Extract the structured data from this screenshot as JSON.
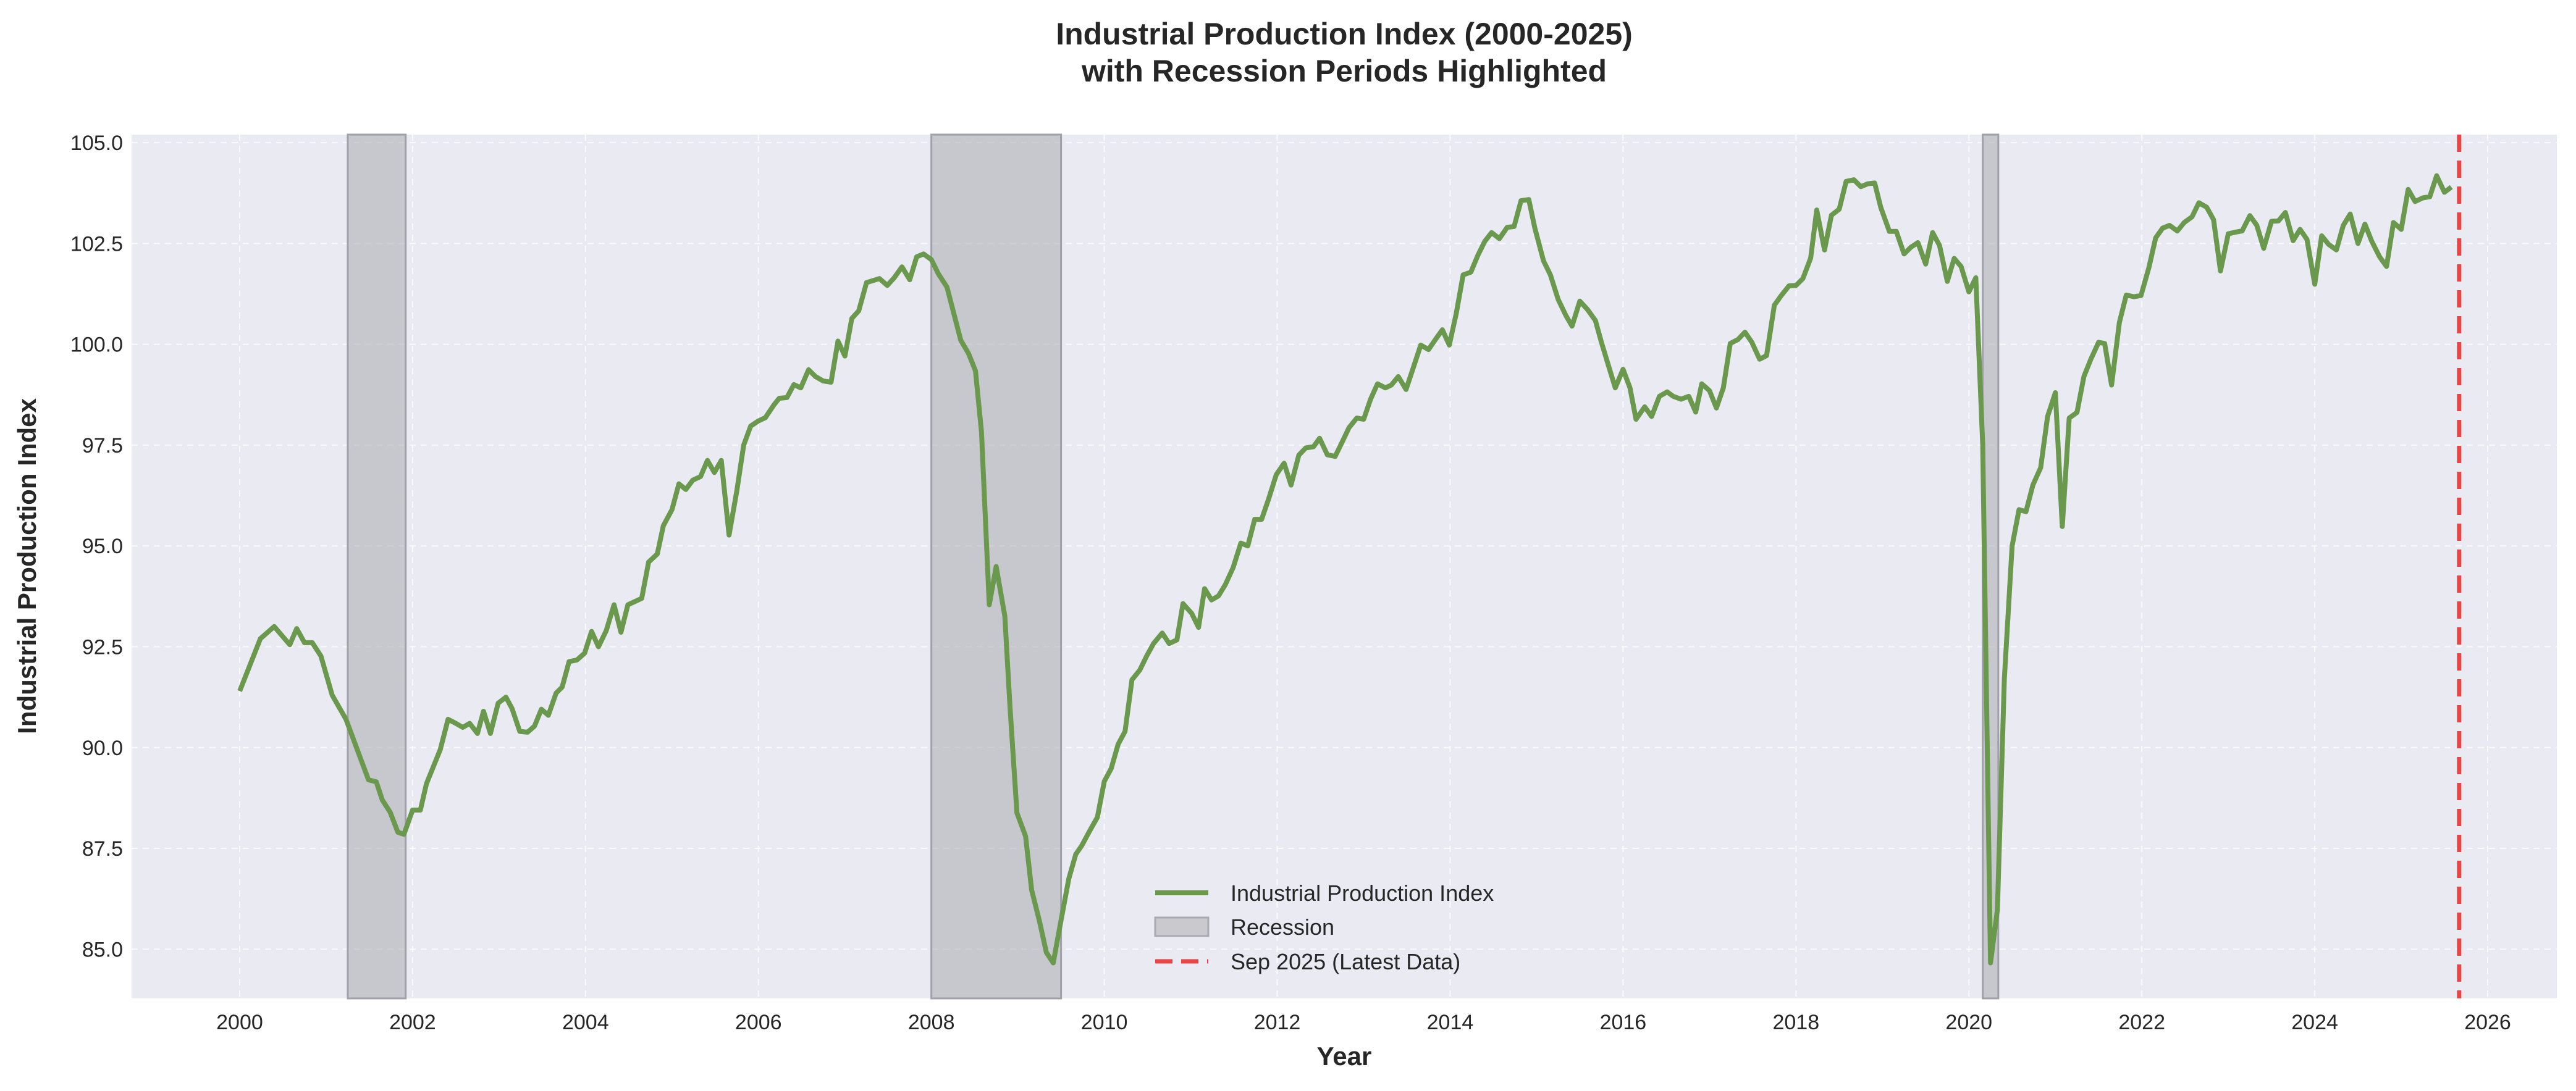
{
  "chart_data": {
    "type": "line",
    "title": "Industrial Production Index (2000-2025)",
    "subtitle": "with Recession Periods Highlighted",
    "xlabel": "Year",
    "ylabel": "Industrial Production Index",
    "xlim": [
      1998.75,
      2026.8
    ],
    "ylim": [
      83.78,
      105.2
    ],
    "xticks": [
      2000,
      2002,
      2004,
      2006,
      2008,
      2010,
      2012,
      2014,
      2016,
      2018,
      2020,
      2022,
      2024,
      2026
    ],
    "xtick_labels": [
      "2000",
      "2002",
      "2004",
      "2006",
      "2008",
      "2010",
      "2012",
      "2014",
      "2016",
      "2018",
      "2020",
      "2022",
      "2024",
      "2026"
    ],
    "yticks": [
      85,
      87.5,
      90,
      92.5,
      95,
      97.5,
      100,
      102.5,
      105
    ],
    "ytick_labels": [
      "85.0",
      "87.5",
      "90.0",
      "92.5",
      "95.0",
      "97.5",
      "100.0",
      "102.5",
      "105.0"
    ],
    "grid": true,
    "legend_position": "lower-center",
    "colors": {
      "line": "#6a994e",
      "recession": "#a9a9b0",
      "latest": "#e84545",
      "background": "#eaeaf2"
    },
    "series": [
      {
        "name": "Industrial Production Index",
        "x": [
          2000.0,
          2000.24,
          2000.4,
          2000.58,
          2000.66,
          2000.75,
          2000.84,
          2000.94,
          2001.07,
          2001.23,
          2001.49,
          2001.58,
          2001.65,
          2001.74,
          2001.83,
          2001.9,
          2002.0,
          2002.09,
          2002.16,
          2002.32,
          2002.41,
          2002.5,
          2002.58,
          2002.66,
          2002.75,
          2002.82,
          2002.9,
          2002.99,
          2003.08,
          2003.15,
          2003.24,
          2003.33,
          2003.41,
          2003.49,
          2003.57,
          2003.66,
          2003.73,
          2003.81,
          2003.9,
          2003.99,
          2004.07,
          2004.15,
          2004.24,
          2004.33,
          2004.41,
          2004.49,
          2004.65,
          2004.73,
          2004.83,
          2004.9,
          2005.0,
          2005.08,
          2005.16,
          2005.24,
          2005.33,
          2005.41,
          2005.49,
          2005.57,
          2005.66,
          2005.75,
          2005.83,
          2005.91,
          2006.0,
          2006.08,
          2006.18,
          2006.24,
          2006.33,
          2006.41,
          2006.49,
          2006.58,
          2006.66,
          2006.75,
          2006.84,
          2006.92,
          2007.0,
          2007.08,
          2007.16,
          2007.25,
          2007.4,
          2007.49,
          2007.57,
          2007.66,
          2007.75,
          2007.83,
          2007.91,
          2008.0,
          2008.08,
          2008.18,
          2008.34,
          2008.43,
          2008.51,
          2008.58,
          2008.67,
          2008.75,
          2008.85,
          2008.91,
          2008.99,
          2009.09,
          2009.16,
          2009.25,
          2009.33,
          2009.41,
          2009.49,
          2009.59,
          2009.67,
          2009.74,
          2009.83,
          2009.92,
          2010.0,
          2010.08,
          2010.16,
          2010.24,
          2010.32,
          2010.41,
          2010.49,
          2010.57,
          2010.67,
          2010.75,
          2010.84,
          2010.91,
          2011.01,
          2011.09,
          2011.16,
          2011.24,
          2011.32,
          2011.4,
          2011.49,
          2011.58,
          2011.66,
          2011.74,
          2011.82,
          2011.9,
          2011.99,
          2012.08,
          2012.16,
          2012.25,
          2012.33,
          2012.42,
          2012.49,
          2012.58,
          2012.67,
          2012.75,
          2012.83,
          2012.92,
          2013.0,
          2013.08,
          2013.16,
          2013.25,
          2013.32,
          2013.4,
          2013.49,
          2013.58,
          2013.66,
          2013.75,
          2013.83,
          2013.91,
          2013.99,
          2014.07,
          2014.15,
          2014.24,
          2014.32,
          2014.4,
          2014.48,
          2014.57,
          2014.66,
          2014.74,
          2014.82,
          2014.91,
          2014.98,
          2015.08,
          2015.16,
          2015.25,
          2015.34,
          2015.41,
          2015.5,
          2015.59,
          2015.68,
          2015.75,
          2015.84,
          2015.91,
          2016.0,
          2016.08,
          2016.15,
          2016.25,
          2016.33,
          2016.42,
          2016.51,
          2016.58,
          2016.67,
          2016.76,
          2016.84,
          2016.91,
          2017.0,
          2017.08,
          2017.16,
          2017.24,
          2017.33,
          2017.41,
          2017.49,
          2017.58,
          2017.66,
          2017.75,
          2017.83,
          2017.92,
          2018.0,
          2018.08,
          2018.17,
          2018.24,
          2018.33,
          2018.41,
          2018.5,
          2018.58,
          2018.67,
          2018.75,
          2018.83,
          2018.91,
          2018.98,
          2019.08,
          2019.16,
          2019.25,
          2019.33,
          2019.41,
          2019.5,
          2019.58,
          2019.66,
          2019.75,
          2019.83,
          2019.91,
          2020.0,
          2020.08,
          2020.16,
          2020.25,
          2020.33,
          2020.41,
          2020.5,
          2020.58,
          2020.66,
          2020.74,
          2020.83,
          2020.91,
          2021.0,
          2021.08,
          2021.16,
          2021.25,
          2021.33,
          2021.41,
          2021.5,
          2021.57,
          2021.65,
          2021.74,
          2021.82,
          2021.91,
          2021.99,
          2022.08,
          2022.16,
          2022.24,
          2022.32,
          2022.41,
          2022.49,
          2022.58,
          2022.66,
          2022.75,
          2022.83,
          2022.91,
          2023.0,
          2023.08,
          2023.16,
          2023.25,
          2023.33,
          2023.41,
          2023.5,
          2023.58,
          2023.66,
          2023.75,
          2023.83,
          2023.91,
          2024.0,
          2024.08,
          2024.16,
          2024.25,
          2024.33,
          2024.41,
          2024.5,
          2024.58,
          2024.66,
          2024.75,
          2024.83,
          2024.91,
          2025.0,
          2025.08,
          2025.16,
          2025.25,
          2025.33,
          2025.41,
          2025.5,
          2025.58
        ],
        "y": [
          91.4,
          92.7,
          93.0,
          92.55,
          92.95,
          92.6,
          92.6,
          92.27,
          91.3,
          90.7,
          89.2,
          89.15,
          88.7,
          88.4,
          87.9,
          87.85,
          88.45,
          88.45,
          89.1,
          89.95,
          90.7,
          90.6,
          90.5,
          90.6,
          90.35,
          90.9,
          90.35,
          91.1,
          91.25,
          90.97,
          90.4,
          90.38,
          90.53,
          90.95,
          90.8,
          91.35,
          91.5,
          92.13,
          92.17,
          92.34,
          92.88,
          92.5,
          92.9,
          93.54,
          92.86,
          93.54,
          93.7,
          94.6,
          94.8,
          95.5,
          95.9,
          96.54,
          96.4,
          96.63,
          96.72,
          97.12,
          96.82,
          97.12,
          95.27,
          96.37,
          97.5,
          97.97,
          98.1,
          98.18,
          98.5,
          98.66,
          98.68,
          99.0,
          98.92,
          99.37,
          99.2,
          99.09,
          99.06,
          100.08,
          99.71,
          100.64,
          100.83,
          101.53,
          101.63,
          101.46,
          101.65,
          101.92,
          101.6,
          102.17,
          102.24,
          102.1,
          101.75,
          101.42,
          100.1,
          99.77,
          99.34,
          97.83,
          93.54,
          94.49,
          93.26,
          91.0,
          88.38,
          87.8,
          86.47,
          85.7,
          84.92,
          84.66,
          85.6,
          86.75,
          87.35,
          87.57,
          87.93,
          88.27,
          89.16,
          89.48,
          90.08,
          90.4,
          91.68,
          91.92,
          92.27,
          92.58,
          92.84,
          92.58,
          92.67,
          93.57,
          93.33,
          92.98,
          93.94,
          93.66,
          93.76,
          94.04,
          94.46,
          95.07,
          95.0,
          95.66,
          95.66,
          96.16,
          96.77,
          97.05,
          96.51,
          97.25,
          97.43,
          97.46,
          97.67,
          97.26,
          97.22,
          97.57,
          97.93,
          98.17,
          98.14,
          98.64,
          99.02,
          98.92,
          98.99,
          99.2,
          98.88,
          99.46,
          99.98,
          99.87,
          100.12,
          100.36,
          99.98,
          100.76,
          101.72,
          101.79,
          102.2,
          102.55,
          102.77,
          102.62,
          102.9,
          102.92,
          103.56,
          103.59,
          102.88,
          102.07,
          101.72,
          101.11,
          100.71,
          100.45,
          101.07,
          100.86,
          100.59,
          100.05,
          99.41,
          98.92,
          99.38,
          98.92,
          98.14,
          98.45,
          98.21,
          98.71,
          98.82,
          98.71,
          98.64,
          98.71,
          98.32,
          99.02,
          98.85,
          98.42,
          98.92,
          100.02,
          100.12,
          100.3,
          100.05,
          99.63,
          99.72,
          100.97,
          101.21,
          101.45,
          101.46,
          101.63,
          102.14,
          103.33,
          102.34,
          103.2,
          103.35,
          104.04,
          104.08,
          103.91,
          103.98,
          104.0,
          103.4,
          102.8,
          102.8,
          102.24,
          102.41,
          102.52,
          101.99,
          102.77,
          102.45,
          101.56,
          102.13,
          101.93,
          101.3,
          101.65,
          97.5,
          84.66,
          85.98,
          91.7,
          95.0,
          95.9,
          95.85,
          96.51,
          96.94,
          98.21,
          98.8,
          95.48,
          98.17,
          98.31,
          99.2,
          99.63,
          100.05,
          100.02,
          98.99,
          100.54,
          101.22,
          101.18,
          101.21,
          101.89,
          102.64,
          102.88,
          102.95,
          102.81,
          103.02,
          103.16,
          103.51,
          103.4,
          103.09,
          101.82,
          102.74,
          102.78,
          102.81,
          103.19,
          102.95,
          102.38,
          103.05,
          103.06,
          103.27,
          102.57,
          102.85,
          102.6,
          101.49,
          102.69,
          102.48,
          102.34,
          102.95,
          103.23,
          102.5,
          102.98,
          102.55,
          102.17,
          101.93,
          103.02,
          102.85,
          103.84,
          103.54,
          103.63,
          103.66,
          104.18,
          103.77,
          103.9
        ]
      }
    ],
    "recessions": [
      {
        "start": 2001.25,
        "end": 2001.92
      },
      {
        "start": 2008.0,
        "end": 2009.5
      },
      {
        "start": 2020.16,
        "end": 2020.34
      }
    ],
    "latest_marker": {
      "x": 2025.67
    },
    "legend": [
      {
        "label": "Industrial Production Index",
        "kind": "line"
      },
      {
        "label": "Recession",
        "kind": "patch"
      },
      {
        "label": "Sep 2025 (Latest Data)",
        "kind": "dashed"
      }
    ]
  }
}
